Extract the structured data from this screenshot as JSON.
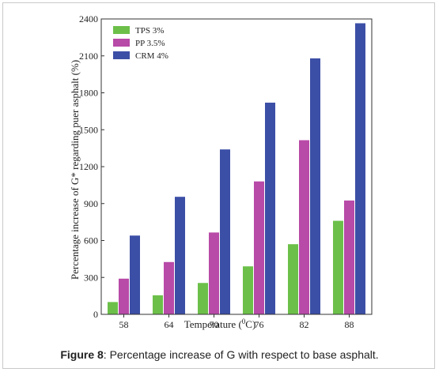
{
  "chart_data": {
    "type": "bar",
    "categories": [
      "58",
      "64",
      "70",
      "76",
      "82",
      "88"
    ],
    "series": [
      {
        "name": "TPS 3%",
        "values": [
          100,
          155,
          255,
          390,
          570,
          760
        ],
        "color": "#6cc04a"
      },
      {
        "name": "PP 3.5%",
        "values": [
          290,
          425,
          665,
          1080,
          1415,
          925
        ],
        "color": "#b84aa8"
      },
      {
        "name": "CRM 4%",
        "values": [
          640,
          955,
          1340,
          1720,
          2080,
          2365
        ],
        "color": "#3c4fa6"
      }
    ],
    "xlabel_base": "Temperature (",
    "xlabel_sup": "0",
    "xlabel_end": "C)",
    "ylabel": "Percentage increase of G* regarding puer asphalt (%)",
    "ylim": [
      0,
      2400
    ],
    "yticks": [
      "0",
      "300",
      "600",
      "900",
      "1200",
      "1500",
      "1800",
      "2100",
      "2400"
    ],
    "legend_position": "top-left",
    "grid": false
  },
  "caption": {
    "label": "Figure 8",
    "text": ": Percentage increase of G with respect to base asphalt."
  }
}
